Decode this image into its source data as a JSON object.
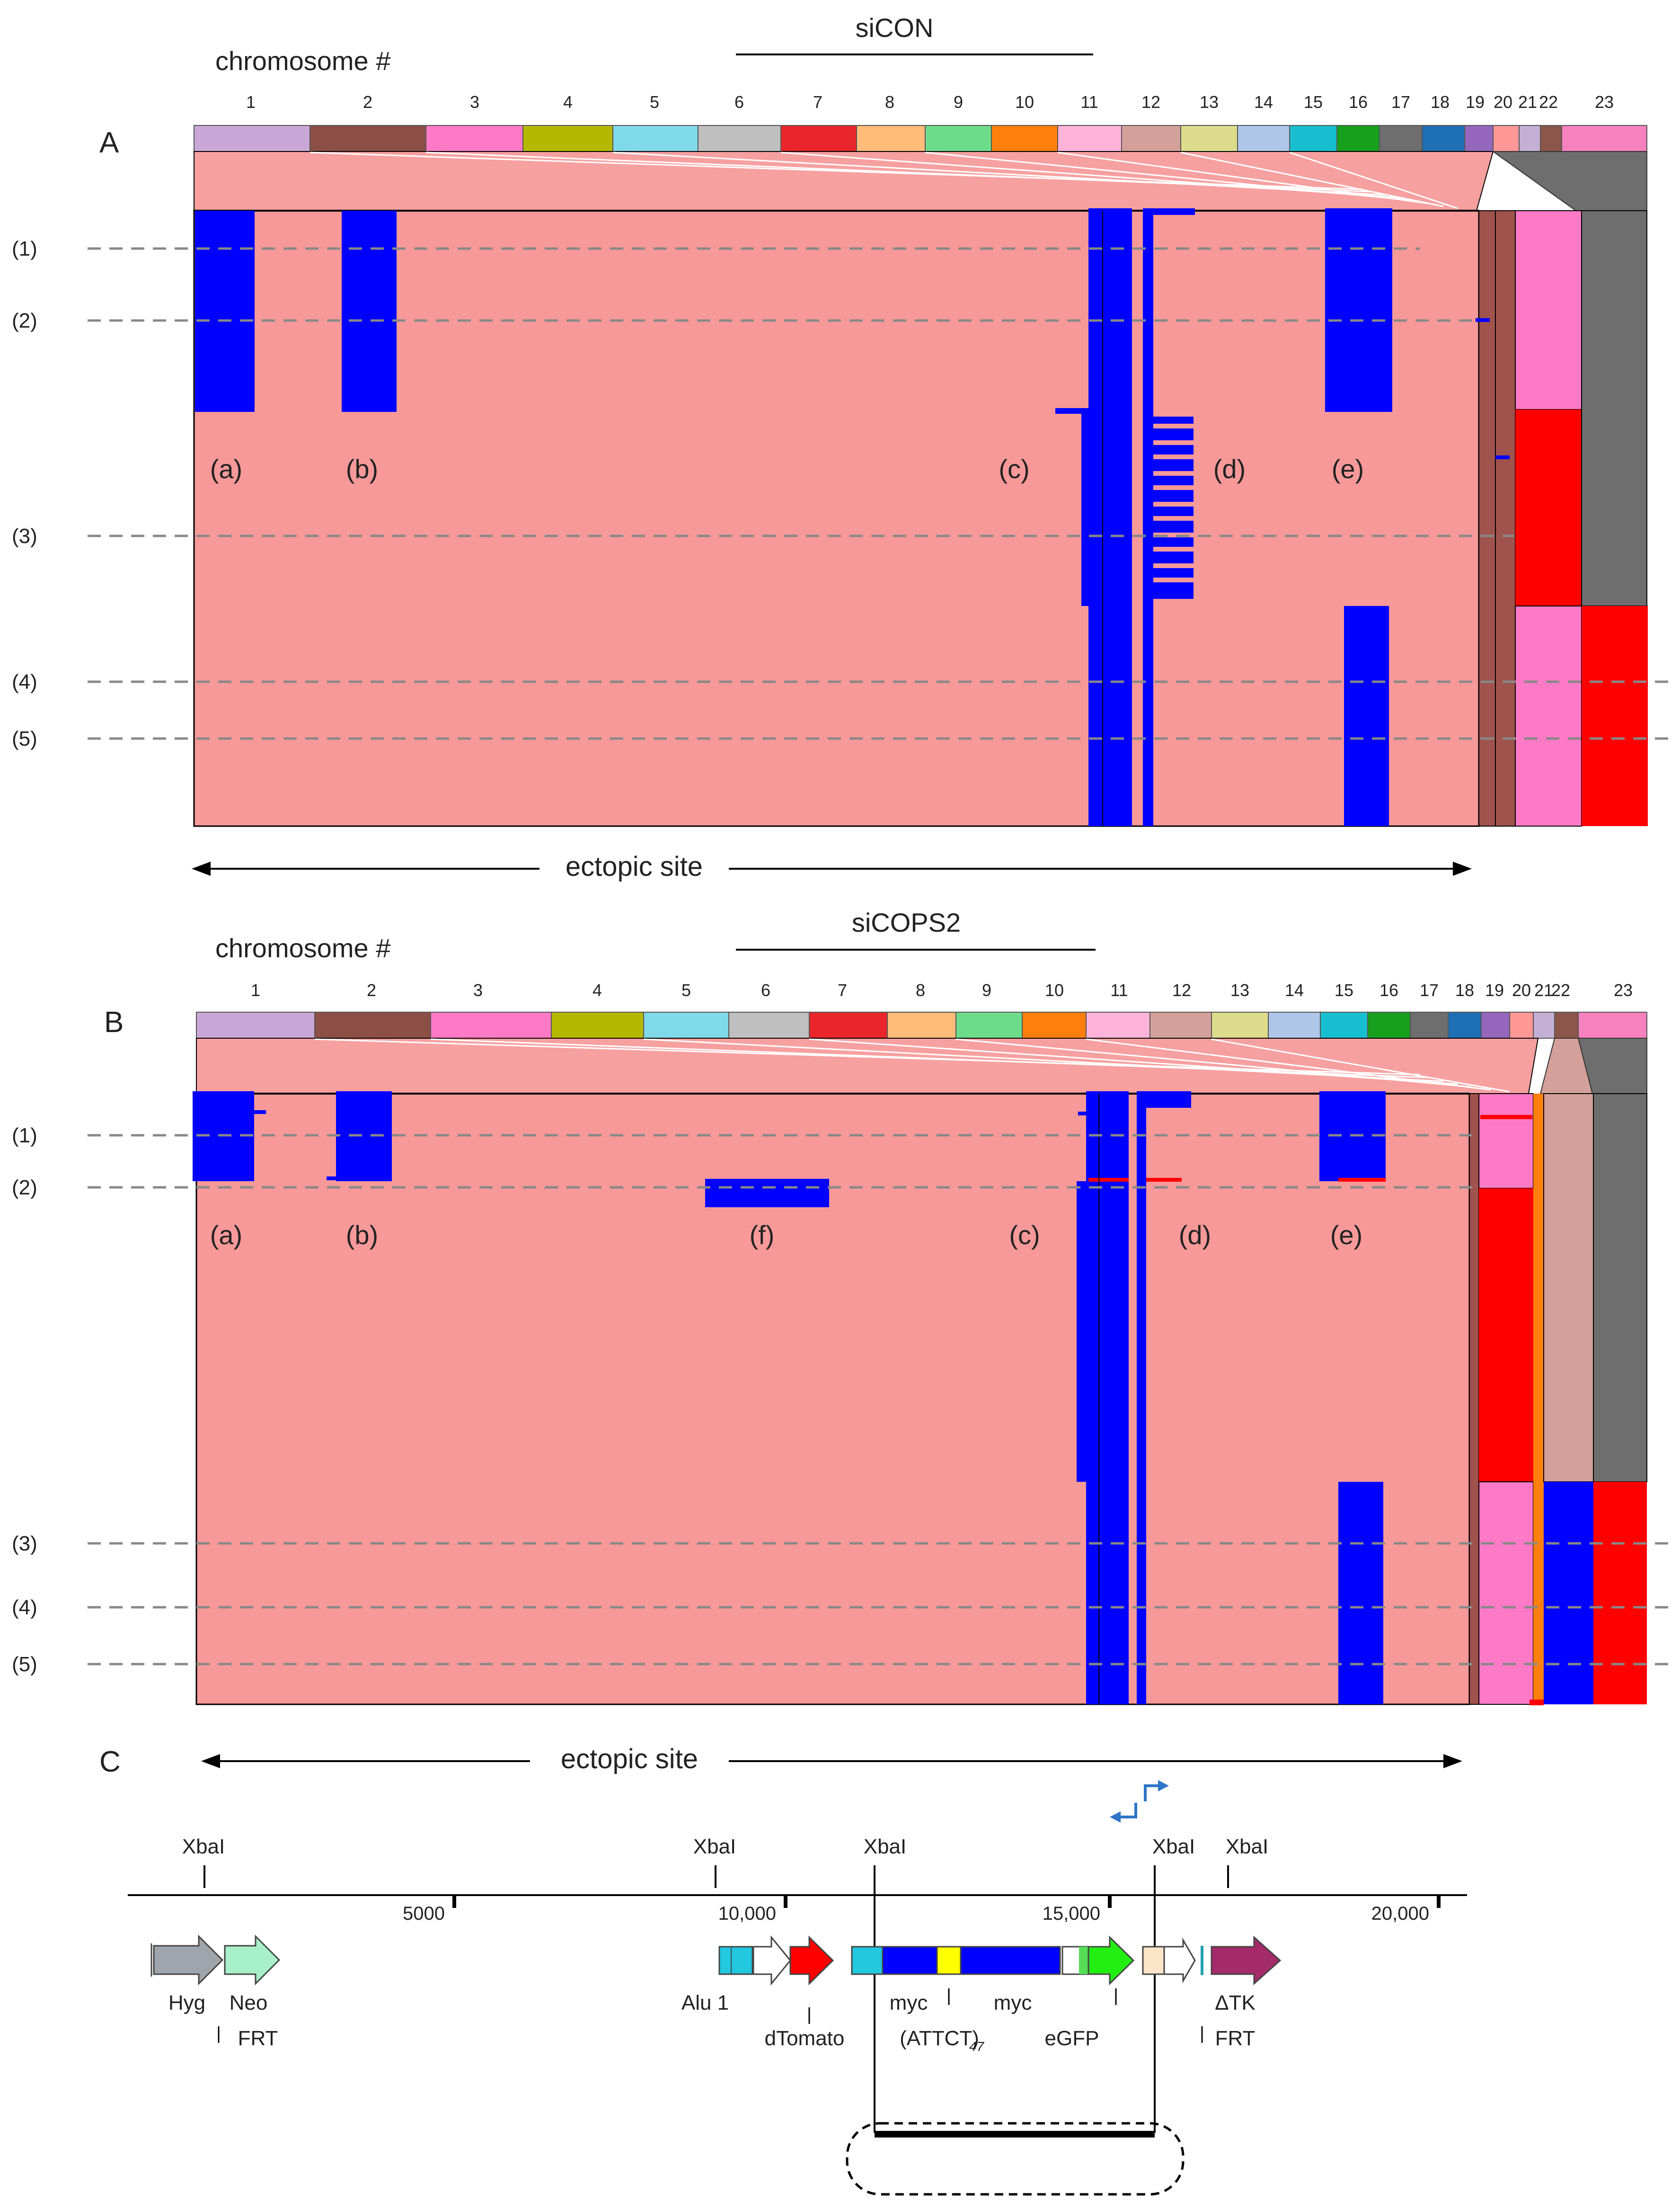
{
  "panelA": {
    "label": "A",
    "condition": "siCON",
    "chromosome_label": "chromosome #",
    "ectopic_label": "ectopic site",
    "row_labels": [
      "(1)",
      "(2)",
      "(3)",
      "(4)",
      "(5)"
    ],
    "region_labels": [
      "(a)",
      "(b)",
      "(c)",
      "(d)",
      "(e)"
    ]
  },
  "panelB": {
    "label": "B",
    "condition": "siCOPS2",
    "chromosome_label": "chromosome #",
    "ectopic_label": "ectopic site",
    "row_labels": [
      "(1)",
      "(2)",
      "(3)",
      "(4)",
      "(5)"
    ],
    "region_labels": [
      "(a)",
      "(b)",
      "(f)",
      "(c)",
      "(d)",
      "(e)"
    ]
  },
  "chromosomes": [
    "1",
    "2",
    "3",
    "4",
    "5",
    "6",
    "7",
    "8",
    "9",
    "10",
    "11",
    "12",
    "13",
    "14",
    "15",
    "16",
    "17",
    "18",
    "19",
    "20",
    "21",
    "22",
    "23"
  ],
  "chromosome_colors": [
    "#c9a7d6",
    "#8c4f45",
    "#ff7ac6",
    "#b5b800",
    "#7fd9e8",
    "#bfbfbf",
    "#e8262b",
    "#ffbb78",
    "#6ddc8a",
    "#ff7f0e",
    "#ffb3d9",
    "#d4a19a",
    "#dcdc8c",
    "#aec7e8",
    "#17becf",
    "#16a01c",
    "#6e6e6e",
    "#1f6fb4",
    "#9467bd",
    "#ff9896",
    "#c5b0d5",
    "#8c564b",
    "#f781bf"
  ],
  "panelC": {
    "label": "C",
    "ticks": [
      "5000",
      "10,000",
      "15,000",
      "20,000"
    ],
    "xbai_sites": [
      "XbaI",
      "XbaI",
      "XbaI",
      "XbaI",
      "XbaI"
    ],
    "elements": [
      "Hyg",
      "Neo",
      "FRT",
      "Alu 1",
      "dTomato",
      "myc",
      "myc",
      "(ATTCT)",
      "47",
      "eGFP",
      "ΔTK",
      "FRT"
    ]
  }
}
